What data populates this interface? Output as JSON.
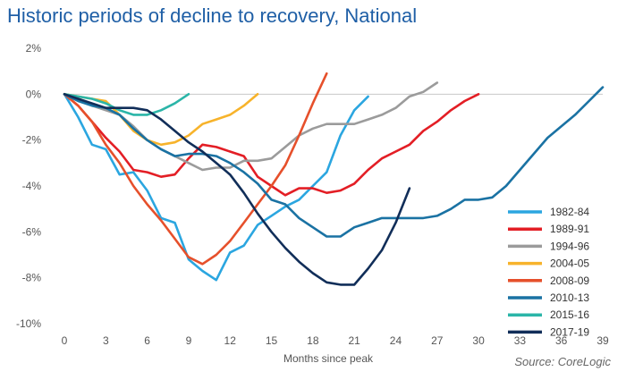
{
  "chart_data": {
    "type": "line",
    "title": "Historic periods of decline to recovery, National",
    "xlabel": "Months since peak",
    "ylabel": "",
    "source": "Source: CoreLogic",
    "xlim": [
      0,
      39
    ],
    "ylim": [
      -10,
      2
    ],
    "x_ticks": [
      0,
      3,
      6,
      9,
      12,
      15,
      18,
      21,
      24,
      27,
      30,
      33,
      36,
      39
    ],
    "y_ticks": [
      -10,
      -8,
      -6,
      -4,
      -2,
      0,
      2
    ],
    "y_tick_labels": [
      "-10%",
      "-8%",
      "-6%",
      "-4%",
      "-2%",
      "0%",
      "2%"
    ],
    "grid": false,
    "legend_position": "right",
    "series": [
      {
        "name": "1982-84",
        "color": "#2ba6e0",
        "x": [
          0,
          1,
          2,
          3,
          4,
          5,
          6,
          7,
          8,
          9,
          10,
          11,
          12,
          13,
          14,
          15,
          16,
          17,
          18,
          19,
          20,
          21,
          22
        ],
        "y": [
          0,
          -1.0,
          -2.2,
          -2.4,
          -3.5,
          -3.4,
          -4.2,
          -5.4,
          -5.6,
          -7.2,
          -7.7,
          -8.1,
          -6.9,
          -6.6,
          -5.7,
          -5.3,
          -4.9,
          -4.6,
          -4.0,
          -3.4,
          -1.8,
          -0.7,
          -0.1
        ]
      },
      {
        "name": "1989-91",
        "color": "#e31e25",
        "x": [
          0,
          1,
          2,
          3,
          4,
          5,
          6,
          7,
          8,
          9,
          10,
          11,
          12,
          13,
          14,
          15,
          16,
          17,
          18,
          19,
          20,
          21,
          22,
          23,
          24,
          25,
          26,
          27,
          28,
          29,
          30
        ],
        "y": [
          0,
          -0.5,
          -1.2,
          -1.9,
          -2.5,
          -3.3,
          -3.4,
          -3.6,
          -3.5,
          -2.8,
          -2.2,
          -2.3,
          -2.5,
          -2.7,
          -3.6,
          -4.0,
          -4.4,
          -4.1,
          -4.1,
          -4.3,
          -4.2,
          -3.9,
          -3.3,
          -2.8,
          -2.5,
          -2.2,
          -1.6,
          -1.2,
          -0.7,
          -0.3,
          0.0
        ]
      },
      {
        "name": "1994-96",
        "color": "#9b9b9b",
        "x": [
          0,
          1,
          2,
          3,
          4,
          5,
          6,
          7,
          8,
          9,
          10,
          11,
          12,
          13,
          14,
          15,
          16,
          17,
          18,
          19,
          20,
          21,
          22,
          23,
          24,
          25,
          26,
          27
        ],
        "y": [
          0,
          -0.2,
          -0.5,
          -0.7,
          -0.9,
          -1.4,
          -2.0,
          -2.4,
          -2.7,
          -3.0,
          -3.3,
          -3.2,
          -3.2,
          -2.9,
          -2.9,
          -2.8,
          -2.3,
          -1.8,
          -1.5,
          -1.3,
          -1.3,
          -1.3,
          -1.1,
          -0.9,
          -0.6,
          -0.1,
          0.1,
          0.5
        ]
      },
      {
        "name": "2004-05",
        "color": "#f7b32b",
        "x": [
          0,
          1,
          2,
          3,
          4,
          5,
          6,
          7,
          8,
          9,
          10,
          11,
          12,
          13,
          14
        ],
        "y": [
          0,
          -0.1,
          -0.2,
          -0.3,
          -0.9,
          -1.6,
          -2.0,
          -2.2,
          -2.1,
          -1.8,
          -1.3,
          -1.1,
          -0.9,
          -0.5,
          0.0
        ]
      },
      {
        "name": "2008-09",
        "color": "#e6502b",
        "x": [
          0,
          1,
          2,
          3,
          4,
          5,
          6,
          7,
          8,
          9,
          10,
          11,
          12,
          13,
          14,
          15,
          16,
          17,
          18,
          19
        ],
        "y": [
          0,
          -0.5,
          -1.2,
          -2.2,
          -3.0,
          -4.0,
          -4.8,
          -5.5,
          -6.3,
          -7.1,
          -7.4,
          -7.0,
          -6.4,
          -5.6,
          -4.8,
          -4.0,
          -3.1,
          -1.8,
          -0.4,
          0.9
        ]
      },
      {
        "name": "2010-13",
        "color": "#1a72a3",
        "x": [
          0,
          1,
          2,
          3,
          4,
          5,
          6,
          7,
          8,
          9,
          10,
          11,
          12,
          13,
          14,
          15,
          16,
          17,
          18,
          19,
          20,
          21,
          22,
          23,
          24,
          25,
          26,
          27,
          28,
          29,
          30,
          31,
          32,
          33,
          34,
          35,
          36,
          37,
          38,
          39
        ],
        "y": [
          0,
          -0.3,
          -0.5,
          -0.6,
          -0.9,
          -1.5,
          -2.0,
          -2.4,
          -2.7,
          -2.6,
          -2.6,
          -2.7,
          -3.0,
          -3.4,
          -3.9,
          -4.6,
          -4.8,
          -5.4,
          -5.8,
          -6.2,
          -6.2,
          -5.8,
          -5.6,
          -5.4,
          -5.4,
          -5.4,
          -5.4,
          -5.3,
          -5.0,
          -4.6,
          -4.6,
          -4.5,
          -4.0,
          -3.3,
          -2.6,
          -1.9,
          -1.4,
          -0.9,
          -0.3,
          0.3
        ]
      },
      {
        "name": "2015-16",
        "color": "#2bb5a8",
        "x": [
          0,
          1,
          2,
          3,
          4,
          5,
          6,
          7,
          8,
          9
        ],
        "y": [
          0,
          -0.1,
          -0.2,
          -0.4,
          -0.7,
          -0.9,
          -0.9,
          -0.7,
          -0.4,
          0.0
        ]
      },
      {
        "name": "2017-19",
        "color": "#112e59",
        "x": [
          0,
          1,
          2,
          3,
          4,
          5,
          6,
          7,
          8,
          9,
          10,
          11,
          12,
          13,
          14,
          15,
          16,
          17,
          18,
          19,
          20,
          21,
          22,
          23,
          24,
          25
        ],
        "y": [
          0,
          -0.2,
          -0.4,
          -0.6,
          -0.6,
          -0.6,
          -0.7,
          -1.1,
          -1.6,
          -2.1,
          -2.5,
          -3.0,
          -3.5,
          -4.3,
          -5.2,
          -6.0,
          -6.7,
          -7.3,
          -7.8,
          -8.2,
          -8.3,
          -8.3,
          -7.6,
          -6.8,
          -5.6,
          -4.1
        ]
      }
    ]
  }
}
